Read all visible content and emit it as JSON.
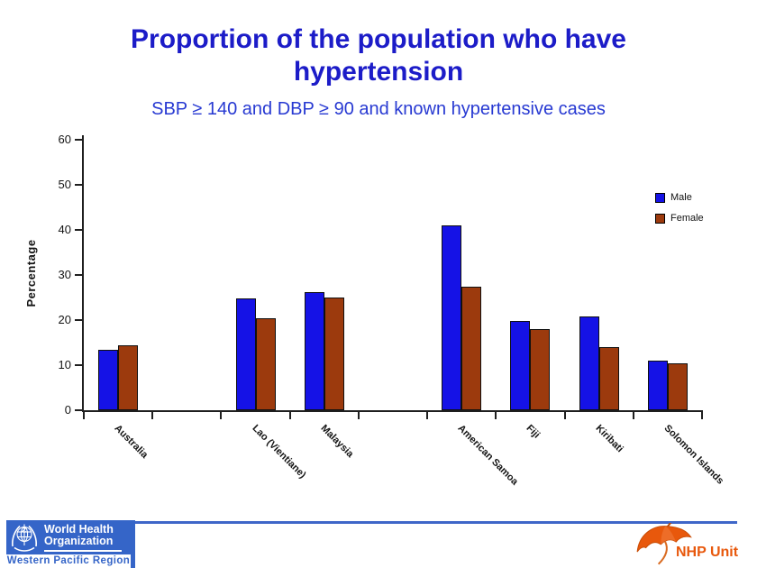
{
  "slide": {
    "title": "Proportion of the population who have hypertension",
    "subtitle": "SBP ≥ 140 and DBP ≥ 90 and known hypertensive cases"
  },
  "chart_data": {
    "type": "bar",
    "title": "Proportion of the population who have hypertension",
    "subtitle": "SBP ≥ 140 and DBP ≥ 90 and known hypertensive cases",
    "xlabel": "",
    "ylabel": "Percentage",
    "ylim": [
      0,
      60
    ],
    "yticks": [
      0,
      10,
      20,
      30,
      40,
      50,
      60
    ],
    "grid": false,
    "legend_position": "right",
    "categories": [
      "Australia",
      "Lao (Vientiane)",
      "Malaysia",
      "American Samoa",
      "Fiji",
      "Kiribati",
      "Solomon Islands"
    ],
    "series": [
      {
        "name": "Male",
        "color": "#1512e6",
        "values": [
          13.5,
          24.8,
          26.3,
          41.0,
          19.8,
          20.8,
          11.0
        ]
      },
      {
        "name": "Female",
        "color": "#9c3a0d",
        "values": [
          14.5,
          20.5,
          25.0,
          27.5,
          18.0,
          14.0,
          10.5
        ]
      }
    ],
    "layout_hint": {
      "axis_slots": 9,
      "category_slot_index": [
        1,
        3,
        4,
        6,
        7,
        8,
        9
      ],
      "x_labels_rotated_deg": 45
    }
  },
  "footer": {
    "who": {
      "line1": "World Health",
      "line2": "Organization",
      "region": "Western Pacific Region"
    },
    "nhp_label": "NHP Unit"
  },
  "colors": {
    "title_blue": "#1c1cc8",
    "subtitle_blue": "#2739d2",
    "male_blue": "#1512e6",
    "female_brown": "#9c3a0d",
    "axis_black": "#1f1f1f",
    "who_blue": "#3565c8",
    "divider_blue": "#3e66c8",
    "nhp_orange": "#e8580c"
  }
}
